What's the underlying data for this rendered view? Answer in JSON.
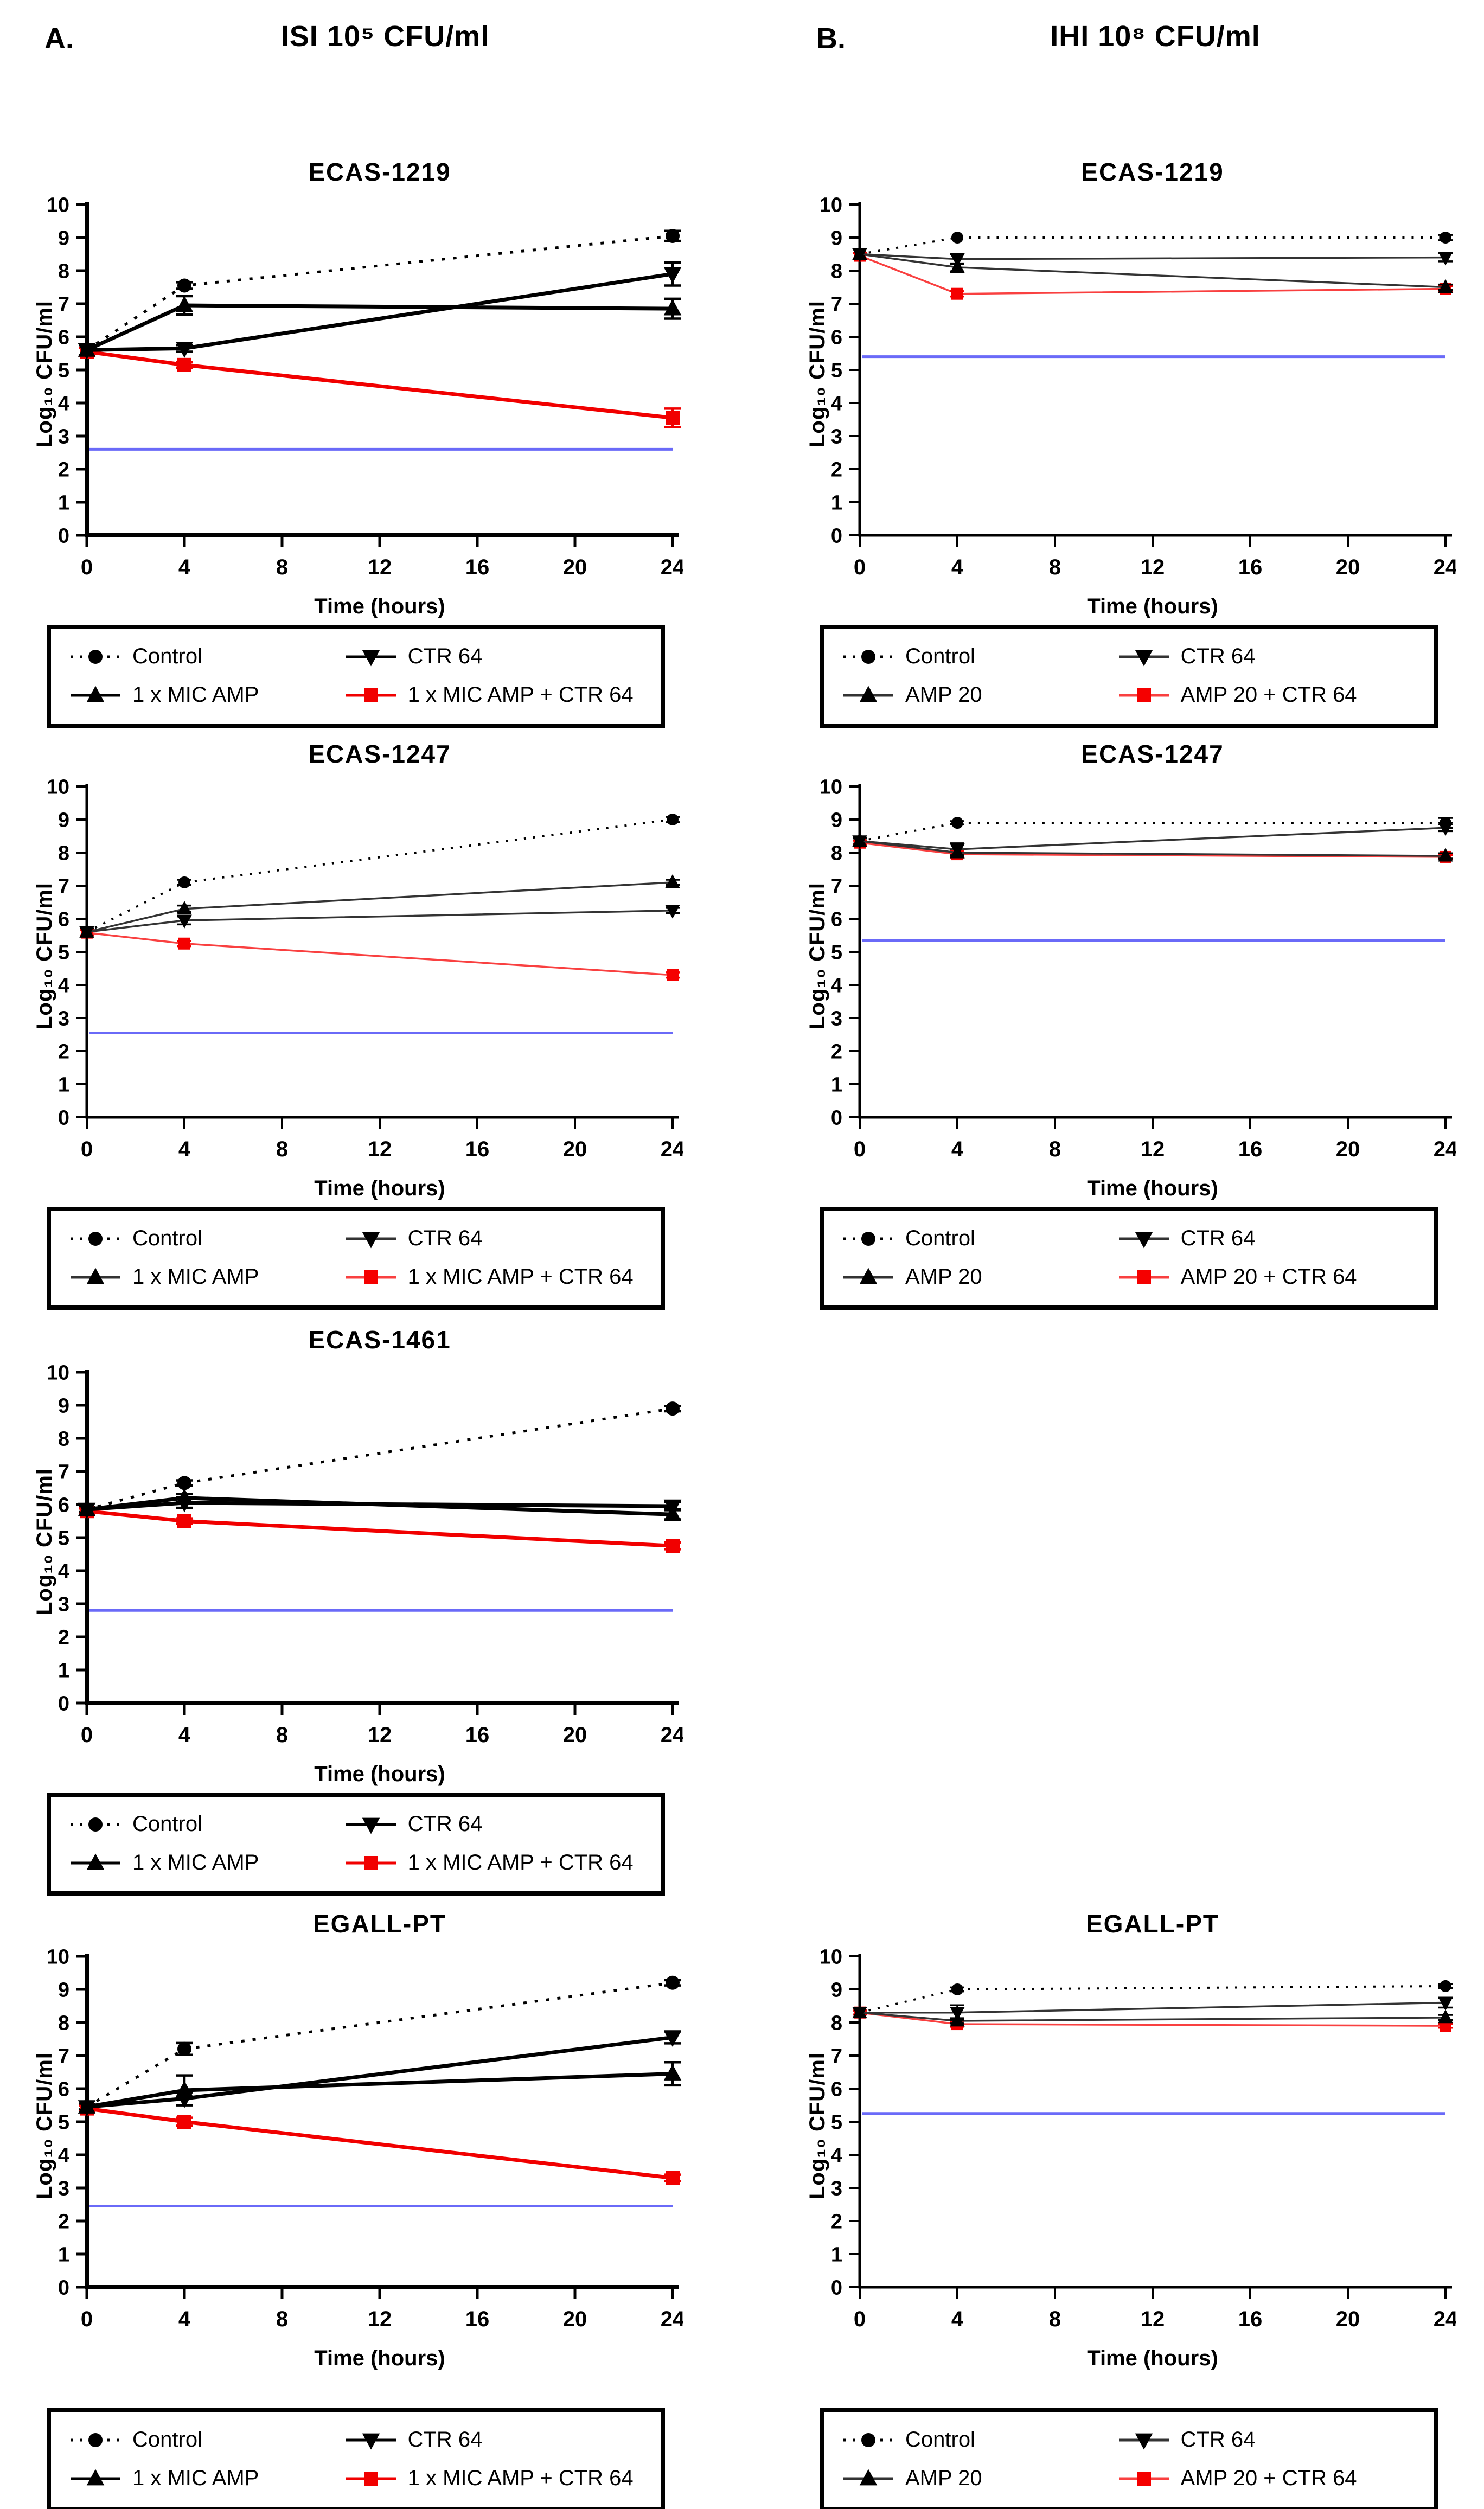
{
  "panels": [
    {
      "label": "A.",
      "title": "ISI 10⁵ CFU/ml"
    },
    {
      "label": "B.",
      "title": "IHI 10⁸ CFU/ml"
    }
  ],
  "chart_data": [
    {
      "type": "line",
      "panel": "A",
      "title": "ECAS-1219",
      "xlabel": "Time (hours)",
      "ylabel": "Log₁₀ CFU/ml",
      "x": [
        0,
        4,
        24
      ],
      "xticks": [
        0,
        4,
        8,
        12,
        16,
        20,
        24
      ],
      "yticks": [
        0,
        1,
        2,
        3,
        4,
        5,
        6,
        7,
        8,
        9,
        10
      ],
      "xlim": [
        0,
        24
      ],
      "ylim": [
        0,
        10
      ],
      "grid": false,
      "legend_position": "below",
      "weight": "thick",
      "blue_line_y": 2.6,
      "blue_line_color": "#6a6af8",
      "series": [
        {
          "name": "Control",
          "marker": "circle",
          "line": "dotted",
          "color": "#000000",
          "values": [
            5.6,
            7.55,
            9.05
          ],
          "err": [
            0.15,
            0.1,
            0.15
          ]
        },
        {
          "name": "1 x MIC AMP",
          "marker": "triangle-up",
          "line": "solid",
          "color": "#000000",
          "values": [
            5.6,
            6.95,
            6.85
          ],
          "err": [
            0,
            0.28,
            0.3
          ]
        },
        {
          "name": "CTR 64",
          "marker": "triangle-down",
          "line": "solid",
          "color": "#000000",
          "values": [
            5.6,
            5.65,
            7.9
          ],
          "err": [
            0,
            0.1,
            0.35
          ]
        },
        {
          "name": "1 x MIC AMP + CTR 64",
          "marker": "square",
          "line": "solid",
          "color": "#f10000",
          "values": [
            5.55,
            5.15,
            3.55
          ],
          "err": [
            0.12,
            0.08,
            0.28
          ]
        }
      ]
    },
    {
      "type": "line",
      "panel": "B",
      "title": "ECAS-1219",
      "xlabel": "Time (hours)",
      "ylabel": "Log₁₀ CFU/ml",
      "x": [
        0,
        4,
        24
      ],
      "xticks": [
        0,
        4,
        8,
        12,
        16,
        20,
        24
      ],
      "yticks": [
        0,
        1,
        2,
        3,
        4,
        5,
        6,
        7,
        8,
        9,
        10
      ],
      "xlim": [
        0,
        24
      ],
      "ylim": [
        0,
        10
      ],
      "grid": false,
      "legend_position": "below",
      "weight": "thin",
      "blue_line_y": 5.4,
      "blue_line_color": "#6a6af8",
      "series": [
        {
          "name": "Control",
          "marker": "circle",
          "line": "dotted",
          "color": "#000000",
          "values": [
            8.5,
            9.0,
            9.0
          ],
          "err": [
            0,
            0,
            0.08
          ]
        },
        {
          "name": "AMP 20",
          "marker": "triangle-up",
          "line": "solid",
          "color": "#333333",
          "marker_color": "#000000",
          "values": [
            8.5,
            8.1,
            7.5
          ],
          "err": [
            0,
            0.12,
            0.08
          ]
        },
        {
          "name": "CTR 64",
          "marker": "triangle-down",
          "line": "solid",
          "color": "#333333",
          "marker_color": "#000000",
          "values": [
            8.5,
            8.35,
            8.4
          ],
          "err": [
            0,
            0.15,
            0.12
          ]
        },
        {
          "name": "AMP 20 + CTR 64",
          "marker": "square",
          "line": "solid",
          "color": "#f94040",
          "marker_color": "#f50000",
          "values": [
            8.45,
            7.3,
            7.45
          ],
          "err": [
            0.08,
            0.08,
            0.08
          ]
        }
      ]
    },
    {
      "type": "line",
      "panel": "A",
      "title": "ECAS-1247",
      "xlabel": "Time (hours)",
      "ylabel": "Log₁₀ CFU/ml",
      "x": [
        0,
        4,
        24
      ],
      "xticks": [
        0,
        4,
        8,
        12,
        16,
        20,
        24
      ],
      "yticks": [
        0,
        1,
        2,
        3,
        4,
        5,
        6,
        7,
        8,
        9,
        10
      ],
      "xlim": [
        0,
        24
      ],
      "ylim": [
        0,
        10
      ],
      "grid": false,
      "legend_position": "below",
      "weight": "thin",
      "blue_line_y": 2.55,
      "blue_line_color": "#6a6af8",
      "series": [
        {
          "name": "Control",
          "marker": "circle",
          "line": "dotted",
          "color": "#000000",
          "values": [
            5.6,
            7.1,
            9.0
          ],
          "err": [
            0.1,
            0.08,
            0.08
          ]
        },
        {
          "name": "1 x MIC AMP",
          "marker": "triangle-up",
          "line": "solid",
          "color": "#333333",
          "marker_color": "#000000",
          "values": [
            5.6,
            6.3,
            7.1
          ],
          "err": [
            0,
            0.1,
            0.08
          ]
        },
        {
          "name": "CTR 64",
          "marker": "triangle-down",
          "line": "solid",
          "color": "#333333",
          "marker_color": "#000000",
          "values": [
            5.6,
            5.95,
            6.25
          ],
          "err": [
            0,
            0.12,
            0.08
          ]
        },
        {
          "name": "1 x MIC AMP + CTR 64",
          "marker": "square",
          "line": "solid",
          "color": "#f94040",
          "marker_color": "#f50000",
          "values": [
            5.58,
            5.25,
            4.3
          ],
          "err": [
            0.08,
            0.08,
            0.08
          ]
        }
      ]
    },
    {
      "type": "line",
      "panel": "B",
      "title": "ECAS-1247",
      "xlabel": "Time (hours)",
      "ylabel": "Log₁₀ CFU/ml",
      "x": [
        0,
        4,
        24
      ],
      "xticks": [
        0,
        4,
        8,
        12,
        16,
        20,
        24
      ],
      "yticks": [
        0,
        1,
        2,
        3,
        4,
        5,
        6,
        7,
        8,
        9,
        10
      ],
      "xlim": [
        0,
        24
      ],
      "ylim": [
        0,
        10
      ],
      "grid": false,
      "legend_position": "below",
      "weight": "thin",
      "blue_line_y": 5.35,
      "blue_line_color": "#6a6af8",
      "series": [
        {
          "name": "Control",
          "marker": "circle",
          "line": "dotted",
          "color": "#000000",
          "values": [
            8.35,
            8.9,
            8.9
          ],
          "err": [
            0.08,
            0.05,
            0.15
          ]
        },
        {
          "name": "AMP 20",
          "marker": "triangle-up",
          "line": "solid",
          "color": "#333333",
          "marker_color": "#000000",
          "values": [
            8.35,
            8.0,
            7.9
          ],
          "err": [
            0,
            0.1,
            0.08
          ]
        },
        {
          "name": "CTR 64",
          "marker": "triangle-down",
          "line": "solid",
          "color": "#333333",
          "marker_color": "#000000",
          "values": [
            8.35,
            8.1,
            8.75
          ],
          "err": [
            0,
            0.18,
            0.1
          ]
        },
        {
          "name": "AMP 20 + CTR 64",
          "marker": "square",
          "line": "solid",
          "color": "#f94040",
          "marker_color": "#f50000",
          "values": [
            8.3,
            7.95,
            7.87
          ],
          "err": [
            0.06,
            0.1,
            0.06
          ]
        }
      ]
    },
    {
      "type": "line",
      "panel": "A",
      "title": "ECAS-1461",
      "xlabel": "Time (hours)",
      "ylabel": "Log₁₀ CFU/ml",
      "x": [
        0,
        4,
        24
      ],
      "xticks": [
        0,
        4,
        8,
        12,
        16,
        20,
        24
      ],
      "yticks": [
        0,
        1,
        2,
        3,
        4,
        5,
        6,
        7,
        8,
        9,
        10
      ],
      "xlim": [
        0,
        24
      ],
      "ylim": [
        0,
        10
      ],
      "grid": false,
      "legend_position": "below",
      "weight": "thick",
      "blue_line_y": 2.8,
      "blue_line_color": "#6a6af8",
      "series": [
        {
          "name": "Control",
          "marker": "circle",
          "line": "dotted",
          "color": "#000000",
          "values": [
            5.85,
            6.65,
            8.9
          ],
          "err": [
            0.08,
            0.08,
            0.08
          ]
        },
        {
          "name": "1 x MIC AMP",
          "marker": "triangle-up",
          "line": "solid",
          "color": "#000000",
          "values": [
            5.85,
            6.2,
            5.7
          ],
          "err": [
            0,
            0.12,
            0.15
          ]
        },
        {
          "name": "CTR 64",
          "marker": "triangle-down",
          "line": "solid",
          "color": "#000000",
          "values": [
            5.85,
            6.05,
            5.95
          ],
          "err": [
            0,
            0.15,
            0.12
          ]
        },
        {
          "name": "1 x MIC AMP + CTR 64",
          "marker": "square",
          "line": "solid",
          "color": "#f10000",
          "values": [
            5.8,
            5.5,
            4.75
          ],
          "err": [
            0.08,
            0.08,
            0.1
          ]
        }
      ]
    },
    {
      "type": "line",
      "panel": "A",
      "title": "EGALL-PT",
      "xlabel": "Time (hours)",
      "ylabel": "Log₁₀ CFU/ml",
      "x": [
        0,
        4,
        24
      ],
      "xticks": [
        0,
        4,
        8,
        12,
        16,
        20,
        24
      ],
      "yticks": [
        0,
        1,
        2,
        3,
        4,
        5,
        6,
        7,
        8,
        9,
        10
      ],
      "xlim": [
        0,
        24
      ],
      "ylim": [
        0,
        10
      ],
      "grid": false,
      "legend_position": "below",
      "weight": "thick",
      "blue_line_y": 2.45,
      "blue_line_color": "#6a6af8",
      "series": [
        {
          "name": "Control",
          "marker": "circle",
          "line": "dotted",
          "color": "#000000",
          "values": [
            5.45,
            7.2,
            9.2
          ],
          "err": [
            0.08,
            0.18,
            0.08
          ]
        },
        {
          "name": "1 x MIC AMP",
          "marker": "triangle-up",
          "line": "solid",
          "color": "#000000",
          "values": [
            5.45,
            5.95,
            6.45
          ],
          "err": [
            0,
            0.45,
            0.35
          ]
        },
        {
          "name": "CTR 64",
          "marker": "triangle-down",
          "line": "solid",
          "color": "#000000",
          "values": [
            5.45,
            5.7,
            7.55
          ],
          "err": [
            0,
            0.2,
            0.18
          ]
        },
        {
          "name": "1 x MIC AMP + CTR 64",
          "marker": "square",
          "line": "solid",
          "color": "#f10000",
          "values": [
            5.4,
            5.0,
            3.3
          ],
          "err": [
            0.08,
            0.12,
            0.1
          ]
        }
      ]
    },
    {
      "type": "line",
      "panel": "B",
      "title": "EGALL-PT",
      "xlabel": "Time (hours)",
      "ylabel": "Log₁₀ CFU/ml",
      "x": [
        0,
        4,
        24
      ],
      "xticks": [
        0,
        4,
        8,
        12,
        16,
        20,
        24
      ],
      "yticks": [
        0,
        1,
        2,
        3,
        4,
        5,
        6,
        7,
        8,
        9,
        10
      ],
      "xlim": [
        0,
        24
      ],
      "ylim": [
        0,
        10
      ],
      "grid": false,
      "legend_position": "below",
      "weight": "thin",
      "blue_line_y": 5.25,
      "blue_line_color": "#6a6af8",
      "series": [
        {
          "name": "Control",
          "marker": "circle",
          "line": "dotted",
          "color": "#000000",
          "values": [
            8.3,
            9.0,
            9.1
          ],
          "err": [
            0.06,
            0.06,
            0.06
          ]
        },
        {
          "name": "AMP 20",
          "marker": "triangle-up",
          "line": "solid",
          "color": "#333333",
          "marker_color": "#000000",
          "values": [
            8.3,
            8.05,
            8.15
          ],
          "err": [
            0,
            0.08,
            0.08
          ]
        },
        {
          "name": "CTR 64",
          "marker": "triangle-down",
          "line": "solid",
          "color": "#333333",
          "marker_color": "#000000",
          "values": [
            8.3,
            8.3,
            8.6
          ],
          "err": [
            0,
            0.22,
            0.15
          ]
        },
        {
          "name": "AMP 20 + CTR 64",
          "marker": "square",
          "line": "solid",
          "color": "#f94040",
          "marker_color": "#f50000",
          "values": [
            8.3,
            7.95,
            7.9
          ],
          "err": [
            0.06,
            0.08,
            0.06
          ]
        }
      ]
    }
  ]
}
